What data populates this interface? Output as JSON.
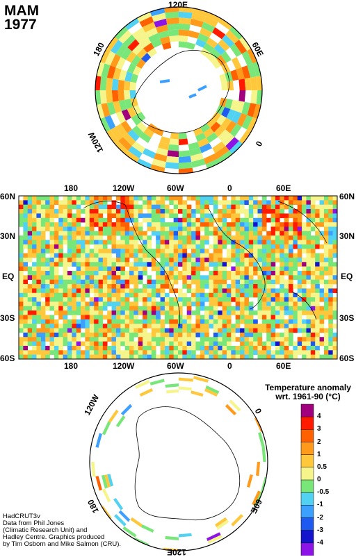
{
  "header": {
    "season": "MAM",
    "year": "1977"
  },
  "north_map": {
    "labels": {
      "top": "120E",
      "left": "180",
      "right": "60E",
      "lower_left": "120W",
      "lower_right": "0"
    }
  },
  "world_map": {
    "lat_labels": [
      "60N",
      "30N",
      "EQ",
      "30S",
      "60S"
    ],
    "lon_labels": [
      "180",
      "120W",
      "60W",
      "0",
      "60E"
    ]
  },
  "south_map": {
    "labels": {
      "upper_left": "120W",
      "upper_right": "0",
      "lower_left": "180",
      "lower_right": "60E",
      "bottom": "120E"
    }
  },
  "legend": {
    "title_line1": "Temperature anomaly",
    "title_line2": "wrt. 1961-90  (°C)",
    "ticks": [
      "4",
      "3",
      "2",
      "1",
      "0.5",
      "0",
      "-0.5",
      "-1",
      "-2",
      "-3",
      "-4"
    ],
    "colors": [
      "#a0007e",
      "#ff1a00",
      "#ff6000",
      "#ff9a1a",
      "#ffc83c",
      "#f5f58c",
      "#78e678",
      "#52d2f2",
      "#3ca0ff",
      "#1e5af0",
      "#1414cd",
      "#8c14e6"
    ]
  },
  "credit": {
    "text": "HadCRUT3v\nData from Phil Jones\n(Climatic Research Unit) and\nHadley Centre.  Graphics produced\nby Tim Osborn and Mike Salmon (CRU)."
  }
}
